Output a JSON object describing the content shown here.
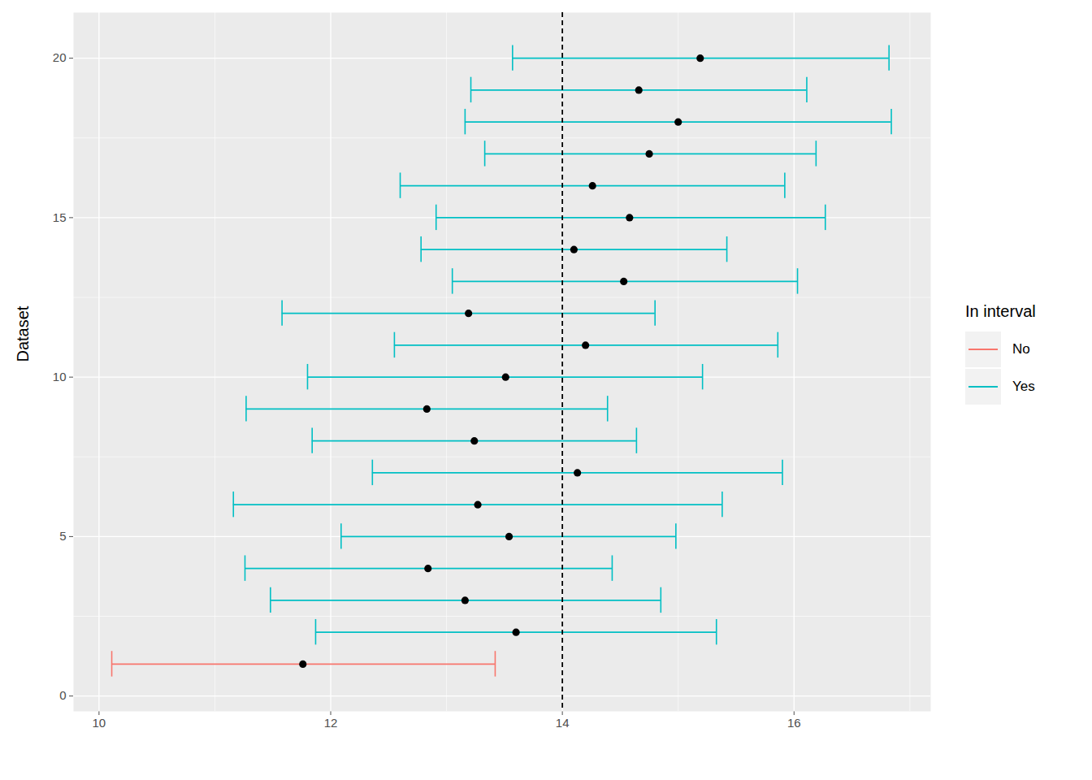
{
  "chart_data": {
    "type": "errorbar",
    "y_label": "Dataset",
    "legend_title": "In interval",
    "legend": "right",
    "grid": true,
    "series": [
      {
        "name": "No",
        "color": "#F8766D"
      },
      {
        "name": "Yes",
        "color": "#00BFC4"
      }
    ],
    "y": [
      1,
      2,
      3,
      4,
      5,
      6,
      7,
      8,
      9,
      10,
      11,
      12,
      13,
      14,
      15,
      16,
      17,
      18,
      19,
      20
    ],
    "values": [
      11.76,
      13.6,
      13.16,
      12.84,
      13.54,
      13.27,
      14.13,
      13.24,
      12.83,
      13.51,
      14.2,
      13.19,
      14.53,
      14.1,
      14.58,
      14.26,
      14.75,
      15.0,
      14.66,
      15.19
    ],
    "error_low": [
      10.11,
      11.87,
      11.48,
      11.26,
      12.09,
      11.16,
      12.36,
      11.84,
      11.27,
      11.8,
      12.55,
      11.58,
      13.05,
      12.78,
      12.91,
      12.6,
      13.33,
      13.16,
      13.21,
      13.57
    ],
    "error_high": [
      13.42,
      15.33,
      14.85,
      14.43,
      14.98,
      15.38,
      15.9,
      14.64,
      14.39,
      15.21,
      15.86,
      14.8,
      16.03,
      15.42,
      16.27,
      15.92,
      16.19,
      16.84,
      16.11,
      16.82
    ],
    "groups": [
      "No",
      "Yes",
      "Yes",
      "Yes",
      "Yes",
      "Yes",
      "Yes",
      "Yes",
      "Yes",
      "Yes",
      "Yes",
      "Yes",
      "Yes",
      "Yes",
      "Yes",
      "Yes",
      "Yes",
      "Yes",
      "Yes",
      "Yes"
    ],
    "vline": 14,
    "xlim": [
      9.78,
      17.18
    ],
    "xticks": [
      10,
      12,
      14,
      16
    ],
    "ylim": [
      -0.48,
      21.43
    ],
    "yticks": [
      0,
      5,
      10,
      15,
      20
    ]
  }
}
